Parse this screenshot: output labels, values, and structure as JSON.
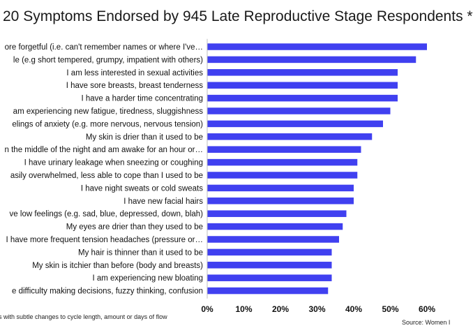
{
  "header": {
    "title": "20 Symptoms Endorsed by 945 Late Reproductive Stage Respondents *"
  },
  "footer": {
    "footnote": "s with subtle changes to cycle length, amount or days of flow",
    "source": "Source: Women I"
  },
  "colors": {
    "bar": "#4040f0",
    "axis": "#bfbfbf"
  },
  "chart_data": {
    "type": "bar",
    "orientation": "horizontal",
    "title": "20 Symptoms Endorsed by 945 Late Reproductive Stage Respondents *",
    "categories": [
      "ore forgetful (i.e. can't remember names or where I've…",
      "le (e.g short tempered, grumpy, impatient with others)",
      "I am less interested in sexual activities",
      "I have sore breasts, breast tenderness",
      "I have a harder time concentrating",
      "am experiencing new fatigue, tiredness, sluggishness",
      "elings of anxiety (e.g. more nervous, nervous tension)",
      "My skin is drier than it used to be",
      "n the middle of the night and am awake for an hour or…",
      "I have urinary leakage when sneezing or coughing",
      "asily overwhelmed, less able to cope than I used to be",
      "I have night sweats or cold sweats",
      "I have new facial hairs",
      "ve low feelings (e.g. sad, blue, depressed, down, blah)",
      "My eyes are drier than they used to be",
      "I have more frequent tension headaches (pressure or…",
      "My hair is thinner than it used to be",
      "My skin is itchier than before (body and breasts)",
      "I am experiencing new bloating",
      "e difficulty making decisions,  fuzzy thinking, confusion"
    ],
    "values": [
      60,
      57,
      52,
      52,
      52,
      50,
      48,
      45,
      42,
      41,
      41,
      40,
      40,
      38,
      37,
      36,
      34,
      34,
      34,
      33
    ],
    "xlim": [
      0,
      60
    ],
    "xticks": [
      0,
      10,
      20,
      30,
      40,
      50,
      60
    ],
    "xtick_labels": [
      "0%",
      "10%",
      "20%",
      "30%",
      "40%",
      "50%",
      "60%"
    ],
    "grid": false,
    "legend": "none"
  }
}
